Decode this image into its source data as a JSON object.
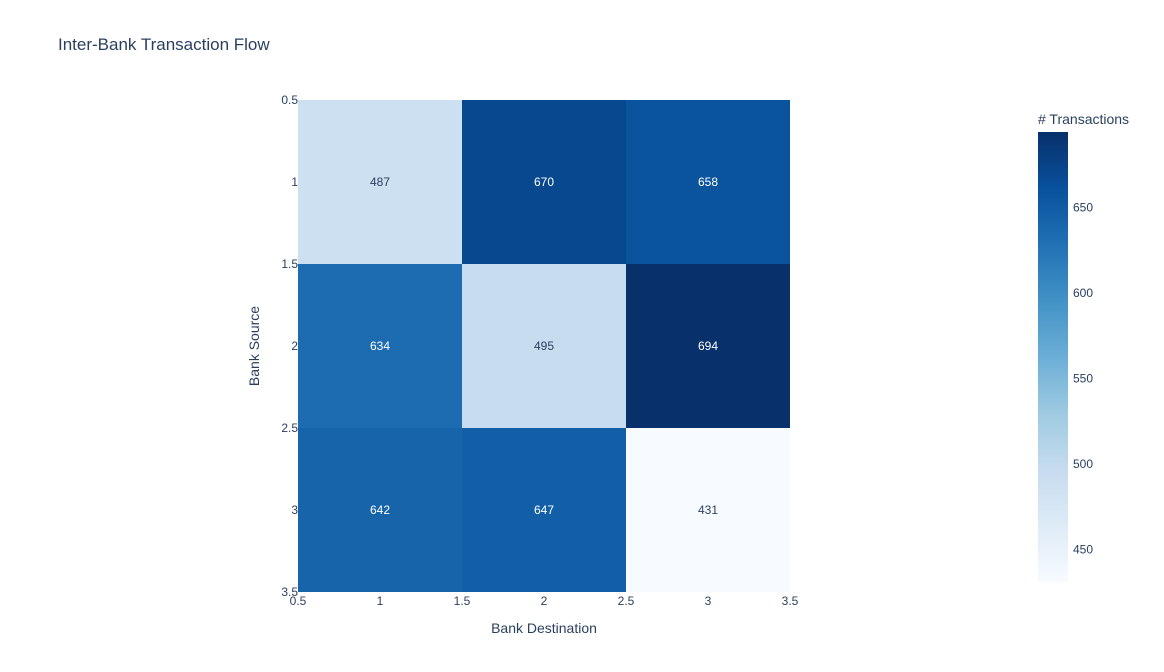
{
  "chart_data": {
    "type": "heatmap",
    "title": "Inter-Bank Transaction Flow",
    "xlabel": "Bank Destination",
    "ylabel": "Bank Source",
    "x": [
      1,
      2,
      3
    ],
    "y": [
      1,
      2,
      3
    ],
    "z": [
      [
        487,
        670,
        658
      ],
      [
        634,
        495,
        694
      ],
      [
        642,
        647,
        431
      ]
    ],
    "xlim": [
      0.5,
      3.5
    ],
    "ylim": [
      0.5,
      3.5
    ],
    "x_ticks": [
      "0.5",
      "1",
      "1.5",
      "2",
      "2.5",
      "3",
      "3.5"
    ],
    "y_ticks": [
      "0.5",
      "1",
      "1.5",
      "2",
      "2.5",
      "3",
      "3.5"
    ],
    "y_reversed": true,
    "colorscale": "Blues",
    "colorbar": {
      "title": "# Transactions",
      "ticks": [
        "450",
        "500",
        "550",
        "600",
        "650"
      ],
      "range": [
        431,
        694
      ]
    },
    "grid": false
  }
}
